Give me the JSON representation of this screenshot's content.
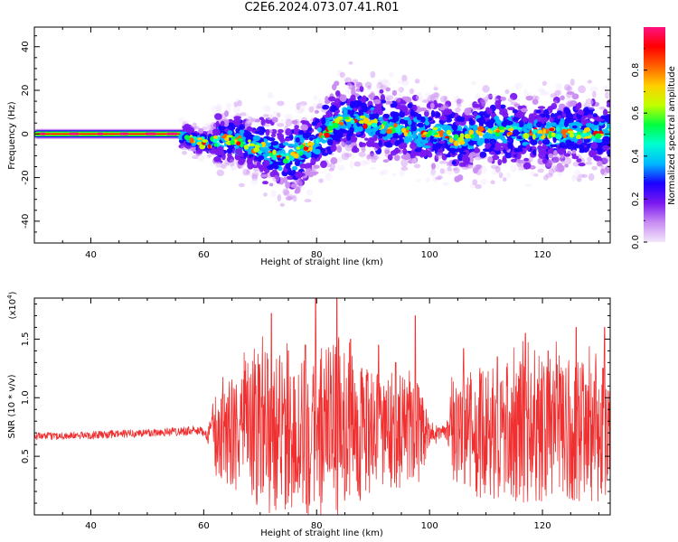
{
  "title": "C2E6.2024.073.07.41.R01",
  "colors": {
    "snr_line": "#f03030",
    "colormap": [
      "#f2e6fb",
      "#c98cf2",
      "#7a18f0",
      "#1a00ff",
      "#00b8ff",
      "#00ffd0",
      "#00ff40",
      "#c0ff00",
      "#ffd000",
      "#ff6000",
      "#ff0000",
      "#ff1080"
    ]
  },
  "chart_data": [
    {
      "type": "heatmap",
      "xlabel": "Height of straight line (km)",
      "ylabel": "Frequency (Hz)",
      "xlim": [
        30,
        132
      ],
      "ylim": [
        -50,
        49
      ],
      "xticks": [
        40,
        60,
        80,
        100,
        120
      ],
      "yticks": [
        -40,
        -20,
        0,
        20,
        40
      ],
      "colorbar": {
        "label": "Normalized spectral amplitude",
        "range": [
          0,
          1
        ],
        "ticks": [
          0.0,
          0.2,
          0.4,
          0.6,
          0.8
        ]
      },
      "ridge": {
        "x": [
          30,
          55,
          57,
          59,
          61,
          63,
          65,
          67,
          69,
          71,
          73,
          75,
          77,
          79,
          81,
          83,
          85,
          87,
          89,
          91,
          93,
          95,
          97,
          99,
          101,
          103,
          105,
          107,
          110,
          115,
          120,
          125,
          130,
          132
        ],
        "y": [
          0,
          0,
          -1,
          -4,
          -4,
          -3,
          -2,
          -4,
          -6,
          -7,
          -9,
          -11,
          -8,
          -5,
          -1,
          4,
          7,
          7,
          5,
          4,
          3,
          2,
          1,
          0,
          1,
          0,
          -3,
          -1,
          2,
          1,
          0,
          1,
          0,
          1
        ]
      }
    },
    {
      "type": "line",
      "xlabel": "Height of straight line (km)",
      "ylabel": "SNR (10 * v/v)",
      "scale_label": "(x10",
      "scale_exp": "4",
      "scale_close": ")",
      "xlim": [
        30,
        132
      ],
      "ylim": [
        0,
        1.85
      ],
      "xticks": [
        40,
        60,
        80,
        100,
        120
      ],
      "yticks": [
        0.5,
        1.0,
        1.5
      ],
      "yticklabels": [
        "0.5",
        "1.0",
        "1.5"
      ],
      "series": [
        {
          "baseline": {
            "x": [
              30,
              40,
              50,
              58,
              61,
              62,
              65,
              70,
              75,
              80,
              85,
              90,
              95,
              100,
              102,
              104,
              110,
              115,
              120,
              125,
              132
            ],
            "y": [
              0.67,
              0.68,
              0.7,
              0.72,
              0.7,
              0.68,
              0.7,
              0.72,
              0.68,
              0.7,
              0.74,
              0.7,
              0.72,
              0.68,
              0.7,
              0.7,
              0.68,
              0.72,
              0.7,
              0.72,
              0.7
            ]
          },
          "envelope": {
            "x": [
              30,
              60,
              61,
              62,
              64,
              66,
              70,
              75,
              79,
              80,
              84,
              85,
              88,
              90,
              95,
              98,
              100,
              103,
              104,
              110,
              115,
              120,
              125,
              130,
              132
            ],
            "y": [
              0.03,
              0.04,
              0.12,
              0.35,
              0.45,
              0.5,
              0.7,
              0.7,
              0.72,
              0.75,
              0.75,
              0.65,
              0.6,
              0.5,
              0.5,
              0.45,
              0.1,
              0.06,
              0.5,
              0.55,
              0.6,
              0.65,
              0.6,
              0.6,
              0.6
            ]
          },
          "peaks": [
            {
              "x": 72,
              "y": 1.72
            },
            {
              "x": 75,
              "y": 1.4
            },
            {
              "x": 78,
              "y": 1.45
            },
            {
              "x": 79.8,
              "y": 1.85
            },
            {
              "x": 83.6,
              "y": 1.85
            },
            {
              "x": 86,
              "y": 1.5
            },
            {
              "x": 88,
              "y": 1.25
            },
            {
              "x": 91,
              "y": 1.45
            },
            {
              "x": 94,
              "y": 1.3
            },
            {
              "x": 97.5,
              "y": 1.7
            },
            {
              "x": 106,
              "y": 1.42
            },
            {
              "x": 112,
              "y": 1.35
            },
            {
              "x": 117,
              "y": 1.55
            },
            {
              "x": 121,
              "y": 1.4
            },
            {
              "x": 126,
              "y": 1.6
            },
            {
              "x": 131,
              "y": 1.6
            }
          ]
        }
      ]
    }
  ]
}
